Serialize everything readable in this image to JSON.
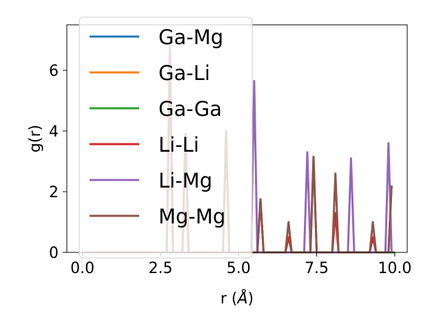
{
  "chart_data": {
    "type": "line",
    "title": "",
    "xlabel": "r (Å)",
    "ylabel": "g(r)",
    "xlim": [
      -0.5,
      10.4
    ],
    "ylim": [
      0,
      7.5
    ],
    "x_ticks": [
      0.0,
      2.5,
      5.0,
      7.5,
      10.0
    ],
    "x_tick_labels": [
      "0.0",
      "2.5",
      "5.0",
      "7.5",
      "10.0"
    ],
    "y_ticks": [
      0,
      2,
      4,
      6
    ],
    "y_tick_labels": [
      "0",
      "2",
      "4",
      "6"
    ],
    "grid": false,
    "legend_position": "top-left",
    "series": [
      {
        "name": "Ga-Mg",
        "color": "#1f77b4",
        "x": [
          0,
          10
        ],
        "y": [
          0,
          0
        ]
      },
      {
        "name": "Ga-Li",
        "color": "#ff7f0e",
        "x": [
          0,
          10
        ],
        "y": [
          0,
          0
        ]
      },
      {
        "name": "Ga-Ga",
        "color": "#2ca02c",
        "x": [
          0,
          10
        ],
        "y": [
          0,
          0
        ]
      },
      {
        "name": "Li-Li",
        "color": "#d62728",
        "x": [
          0,
          2.7,
          2.8,
          2.9,
          3.2,
          3.3,
          3.4,
          4.5,
          4.6,
          4.7,
          5.6,
          5.7,
          5.8,
          6.5,
          6.6,
          6.7,
          7.3,
          7.4,
          7.5,
          8.0,
          8.1,
          8.2,
          9.2,
          9.3,
          9.4,
          9.8,
          9.9
        ],
        "y": [
          0,
          0,
          6.6,
          0,
          0,
          3.9,
          0,
          0,
          4.0,
          0,
          0,
          1.75,
          0,
          0,
          0.5,
          0,
          0,
          3.15,
          0,
          0,
          1.3,
          0,
          0,
          0.5,
          0,
          0,
          2.2
        ]
      },
      {
        "name": "Li-Mg",
        "color": "#9467bd",
        "x": [
          0,
          2.7,
          2.8,
          2.9,
          5.4,
          5.5,
          5.6,
          7.1,
          7.2,
          7.3,
          8.5,
          8.6,
          8.7,
          9.7,
          9.8,
          9.9
        ],
        "y": [
          0,
          0,
          7.0,
          0,
          0,
          5.65,
          0,
          0,
          3.3,
          0,
          0,
          3.1,
          0,
          0,
          3.6,
          0
        ]
      },
      {
        "name": "Mg-Mg",
        "color": "#8c564b",
        "x": [
          0,
          2.7,
          2.8,
          2.9,
          3.2,
          3.3,
          3.4,
          4.5,
          4.6,
          4.7,
          5.6,
          5.7,
          5.8,
          6.5,
          6.6,
          6.7,
          7.3,
          7.4,
          7.5,
          8.0,
          8.1,
          8.2,
          9.2,
          9.3,
          9.4,
          9.8,
          9.9
        ],
        "y": [
          0,
          0,
          6.6,
          0,
          0,
          3.9,
          0,
          0,
          4.0,
          0,
          0,
          1.75,
          0,
          0,
          1.0,
          0,
          0,
          3.15,
          0,
          0,
          2.6,
          0,
          0,
          1.0,
          0,
          0,
          2.2
        ]
      }
    ]
  }
}
